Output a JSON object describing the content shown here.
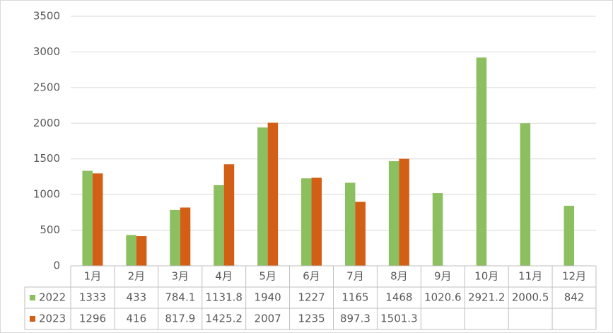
{
  "chart_data": {
    "type": "bar",
    "categories": [
      "1月",
      "2月",
      "3月",
      "4月",
      "5月",
      "6月",
      "7月",
      "8月",
      "9月",
      "10月",
      "11月",
      "12月"
    ],
    "series": [
      {
        "name": "2022",
        "color": "#8cbf5f",
        "values": [
          1333,
          433,
          784.1,
          1131.8,
          1940,
          1227,
          1165,
          1468,
          1020.6,
          2921.2,
          2000.5,
          842
        ]
      },
      {
        "name": "2023",
        "color": "#d35f17",
        "values": [
          1296,
          416,
          817.9,
          1425.2,
          2007,
          1235,
          897.3,
          1501.3,
          null,
          null,
          null,
          null
        ]
      }
    ],
    "ylim": [
      0,
      3500
    ],
    "yticks": [
      0,
      500,
      1000,
      1500,
      2000,
      2500,
      3000,
      3500
    ],
    "grid": true,
    "data_table": true
  }
}
